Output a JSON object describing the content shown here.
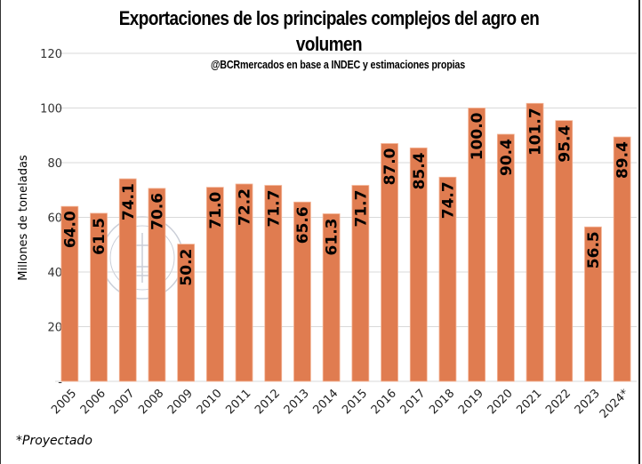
{
  "chart_data": {
    "type": "bar",
    "title": "Exportaciones de los principales complejos del agro en volumen",
    "subtitle": "@BCRmercados en base a INDEC y estimaciones propias",
    "xlabel": "",
    "ylabel": "Millones de toneladas",
    "categories": [
      "2005",
      "2006",
      "2007",
      "2008",
      "2009",
      "2010",
      "2011",
      "2012",
      "2013",
      "2014",
      "2015",
      "2016",
      "2017",
      "2018",
      "2019",
      "2020",
      "2021",
      "2022",
      "2023",
      "2024*"
    ],
    "values": [
      64.0,
      61.5,
      74.1,
      70.6,
      50.2,
      71.0,
      72.2,
      71.7,
      65.6,
      61.3,
      71.7,
      87.0,
      85.4,
      74.7,
      100.0,
      90.4,
      101.7,
      95.4,
      56.5,
      89.4
    ],
    "data_labels": [
      "64.0",
      "61.5",
      "74.1",
      "70.6",
      "50.2",
      "71.0",
      "72.2",
      "71.7",
      "65.6",
      "61.3",
      "71.7",
      "87.0",
      "85.4",
      "74.7",
      "100.0",
      "90.4",
      "101.7",
      "95.4",
      "56.5",
      "89.4"
    ],
    "ylim": [
      0,
      120
    ],
    "yticks": [
      0,
      20,
      40,
      60,
      80,
      100,
      120
    ],
    "ytick_labels": [
      "-",
      "20",
      "40",
      "60",
      "80",
      "100",
      "120"
    ],
    "grid": true,
    "legend": "none",
    "bar_color": "#E07C50",
    "footnote": "*Proyectado"
  }
}
